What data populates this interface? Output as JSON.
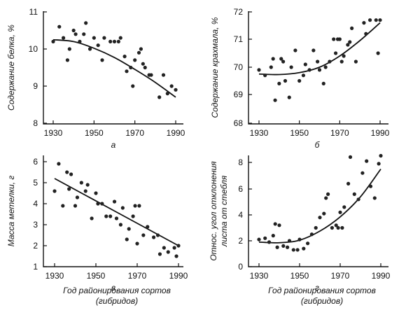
{
  "chart_data": [
    {
      "type": "scatter",
      "panel": "а",
      "ylabel": "Содержание белка, %",
      "xlabel": "",
      "xlim": [
        1925,
        1995
      ],
      "ylim": [
        8,
        11
      ],
      "xticks": [
        "1930",
        "1950",
        "1970",
        "1990"
      ],
      "yticks": [
        "8",
        "9",
        "10",
        "11"
      ],
      "points": [
        [
          1930,
          10.2
        ],
        [
          1933,
          10.6
        ],
        [
          1935,
          10.3
        ],
        [
          1937,
          9.7
        ],
        [
          1938,
          10.0
        ],
        [
          1940,
          10.5
        ],
        [
          1941,
          10.4
        ],
        [
          1943,
          10.2
        ],
        [
          1945,
          10.4
        ],
        [
          1946,
          10.7
        ],
        [
          1948,
          10.0
        ],
        [
          1950,
          10.3
        ],
        [
          1952,
          10.1
        ],
        [
          1954,
          9.7
        ],
        [
          1955,
          10.3
        ],
        [
          1958,
          10.2
        ],
        [
          1960,
          10.2
        ],
        [
          1962,
          10.2
        ],
        [
          1963,
          10.3
        ],
        [
          1965,
          9.8
        ],
        [
          1966,
          9.4
        ],
        [
          1968,
          9.5
        ],
        [
          1969,
          9.0
        ],
        [
          1970,
          9.7
        ],
        [
          1972,
          9.9
        ],
        [
          1973,
          10.0
        ],
        [
          1974,
          9.6
        ],
        [
          1975,
          9.5
        ],
        [
          1977,
          9.3
        ],
        [
          1978,
          9.3
        ],
        [
          1982,
          8.7
        ],
        [
          1984,
          9.3
        ],
        [
          1986,
          8.8
        ],
        [
          1988,
          9.0
        ],
        [
          1990,
          8.9
        ]
      ],
      "fit": [
        [
          1930,
          10.25
        ],
        [
          1940,
          10.2
        ],
        [
          1950,
          10.02
        ],
        [
          1960,
          9.77
        ],
        [
          1970,
          9.45
        ],
        [
          1980,
          9.1
        ],
        [
          1990,
          8.7
        ]
      ]
    },
    {
      "type": "scatter",
      "panel": "б",
      "ylabel": "Содержание крахмала, %",
      "xlabel": "",
      "xlim": [
        1925,
        1995
      ],
      "ylim": [
        68,
        72
      ],
      "xticks": [
        "1930",
        "1950",
        "1970",
        "1990"
      ],
      "yticks": [
        "68",
        "69",
        "70",
        "71",
        "72"
      ],
      "points": [
        [
          1930,
          69.9
        ],
        [
          1933,
          69.7
        ],
        [
          1936,
          70.0
        ],
        [
          1937,
          70.3
        ],
        [
          1938,
          68.8
        ],
        [
          1940,
          69.4
        ],
        [
          1941,
          70.3
        ],
        [
          1942,
          70.2
        ],
        [
          1943,
          69.5
        ],
        [
          1945,
          68.9
        ],
        [
          1946,
          70.0
        ],
        [
          1948,
          70.6
        ],
        [
          1950,
          69.5
        ],
        [
          1952,
          69.7
        ],
        [
          1953,
          70.1
        ],
        [
          1955,
          69.9
        ],
        [
          1957,
          70.6
        ],
        [
          1959,
          70.2
        ],
        [
          1960,
          69.9
        ],
        [
          1962,
          69.4
        ],
        [
          1963,
          70.0
        ],
        [
          1965,
          70.2
        ],
        [
          1967,
          71.0
        ],
        [
          1968,
          70.5
        ],
        [
          1969,
          71.0
        ],
        [
          1970,
          71.0
        ],
        [
          1971,
          70.2
        ],
        [
          1972,
          70.4
        ],
        [
          1974,
          70.8
        ],
        [
          1975,
          70.9
        ],
        [
          1976,
          71.4
        ],
        [
          1978,
          70.2
        ],
        [
          1982,
          71.6
        ],
        [
          1983,
          71.2
        ],
        [
          1985,
          71.7
        ],
        [
          1988,
          71.7
        ],
        [
          1989,
          70.5
        ],
        [
          1990,
          71.7
        ]
      ],
      "fit": [
        [
          1930,
          69.75
        ],
        [
          1940,
          69.73
        ],
        [
          1950,
          69.8
        ],
        [
          1960,
          70.0
        ],
        [
          1970,
          70.4
        ],
        [
          1980,
          70.95
        ],
        [
          1990,
          71.6
        ]
      ]
    },
    {
      "type": "scatter",
      "panel": "в",
      "ylabel": "Масса метелки, г",
      "xlabel": "Год районирования сортов (гибридов)",
      "xlim": [
        1925,
        1995
      ],
      "ylim": [
        1,
        6.5
      ],
      "xticks": [
        "1930",
        "1950",
        "1970",
        "1990"
      ],
      "yticks": [
        "1",
        "2",
        "3",
        "4",
        "5",
        "6"
      ],
      "points": [
        [
          1930,
          4.6
        ],
        [
          1932,
          5.9
        ],
        [
          1934,
          3.9
        ],
        [
          1936,
          5.5
        ],
        [
          1937,
          4.7
        ],
        [
          1938,
          5.4
        ],
        [
          1940,
          3.9
        ],
        [
          1941,
          4.3
        ],
        [
          1943,
          5.0
        ],
        [
          1945,
          4.6
        ],
        [
          1946,
          4.9
        ],
        [
          1948,
          3.3
        ],
        [
          1950,
          4.5
        ],
        [
          1951,
          4.0
        ],
        [
          1953,
          4.0
        ],
        [
          1955,
          3.4
        ],
        [
          1957,
          3.4
        ],
        [
          1959,
          4.1
        ],
        [
          1960,
          3.3
        ],
        [
          1962,
          3.0
        ],
        [
          1963,
          3.8
        ],
        [
          1965,
          2.3
        ],
        [
          1966,
          2.8
        ],
        [
          1968,
          3.4
        ],
        [
          1969,
          3.9
        ],
        [
          1970,
          2.1
        ],
        [
          1971,
          3.9
        ],
        [
          1973,
          2.5
        ],
        [
          1975,
          2.9
        ],
        [
          1978,
          2.4
        ],
        [
          1980,
          2.5
        ],
        [
          1981,
          1.6
        ],
        [
          1983,
          1.9
        ],
        [
          1985,
          1.7
        ],
        [
          1988,
          1.9
        ],
        [
          1989,
          1.5
        ],
        [
          1990,
          2.0
        ]
      ],
      "fit": [
        [
          1930,
          5.2
        ],
        [
          1990,
          2.0
        ]
      ]
    },
    {
      "type": "scatter",
      "panel": "г",
      "ylabel": "Относ. угол отклонения листа от стебля",
      "xlabel": "Год районирования сортов (гибридов)",
      "xlim": [
        1925,
        1995
      ],
      "ylim": [
        0,
        9
      ],
      "xticks": [
        "1930",
        "1950",
        "1970",
        "1990"
      ],
      "yticks": [
        "0",
        "2",
        "4",
        "6",
        "8"
      ],
      "points": [
        [
          1930,
          2.1
        ],
        [
          1933,
          2.2
        ],
        [
          1935,
          1.9
        ],
        [
          1937,
          2.4
        ],
        [
          1938,
          3.3
        ],
        [
          1939,
          1.5
        ],
        [
          1940,
          3.2
        ],
        [
          1942,
          1.6
        ],
        [
          1944,
          1.5
        ],
        [
          1945,
          2.0
        ],
        [
          1947,
          1.3
        ],
        [
          1949,
          1.3
        ],
        [
          1950,
          2.1
        ],
        [
          1952,
          1.4
        ],
        [
          1954,
          1.8
        ],
        [
          1956,
          2.5
        ],
        [
          1958,
          3.0
        ],
        [
          1960,
          3.8
        ],
        [
          1962,
          4.1
        ],
        [
          1963,
          5.3
        ],
        [
          1964,
          5.6
        ],
        [
          1966,
          3.0
        ],
        [
          1968,
          3.2
        ],
        [
          1969,
          3.0
        ],
        [
          1970,
          4.2
        ],
        [
          1971,
          3.0
        ],
        [
          1972,
          4.6
        ],
        [
          1974,
          6.4
        ],
        [
          1975,
          8.4
        ],
        [
          1977,
          5.6
        ],
        [
          1979,
          5.2
        ],
        [
          1981,
          7.2
        ],
        [
          1983,
          8.1
        ],
        [
          1985,
          6.2
        ],
        [
          1987,
          5.3
        ],
        [
          1989,
          7.9
        ],
        [
          1990,
          8.5
        ]
      ],
      "fit": [
        [
          1930,
          1.9
        ],
        [
          1940,
          1.85
        ],
        [
          1950,
          2.05
        ],
        [
          1960,
          2.75
        ],
        [
          1970,
          3.85
        ],
        [
          1980,
          5.4
        ],
        [
          1990,
          7.5
        ]
      ]
    }
  ]
}
